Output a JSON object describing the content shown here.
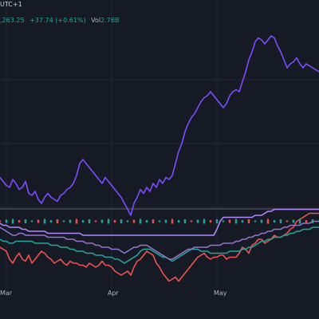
{
  "header": {
    "timezone": "UTC+1",
    "price": ",263.25",
    "change": "+37.74 (+0.61%)",
    "volume_label": "Vol",
    "volume_value": "2.76B"
  },
  "colors": {
    "background": "#161a25",
    "grid": "#232735",
    "up": "#26a69a",
    "down": "#ef5350",
    "volume_green": "#26a69a"
  },
  "chart_data": {
    "type": "line",
    "categories": [
      "Mar",
      "Apr",
      "May"
    ],
    "x": [
      0,
      4,
      8,
      12,
      16,
      20,
      24,
      28,
      32,
      36,
      40,
      44,
      48,
      52,
      56,
      60,
      64,
      68,
      72,
      76,
      80,
      84,
      88,
      92,
      96,
      100,
      104,
      108,
      112,
      116,
      120,
      124,
      128,
      132,
      136,
      140,
      144,
      148,
      152,
      156,
      160,
      164,
      168,
      172,
      176,
      180,
      184,
      188,
      192,
      196,
      200,
      204,
      208,
      212,
      216,
      220,
      224,
      228,
      232,
      236,
      240,
      244,
      248,
      252,
      256,
      260,
      264,
      268,
      272,
      276,
      280,
      284,
      288,
      292,
      296,
      300,
      304,
      308,
      312,
      316,
      320,
      324,
      328,
      332,
      336,
      340,
      344,
      348,
      352,
      356,
      360,
      364,
      368,
      372,
      376,
      380,
      384,
      388,
      392,
      396,
      400
    ],
    "series": [
      {
        "color": "#7c4dff",
        "values": [
          17,
          15,
          13,
          12,
          16,
          14,
          11,
          12,
          15,
          9,
          8,
          10,
          6,
          4,
          7,
          9,
          7,
          6,
          5,
          8,
          9,
          11,
          12,
          14,
          18,
          24,
          26,
          24,
          22,
          20,
          18,
          16,
          14,
          17,
          15,
          13,
          11,
          9,
          7,
          4,
          1,
          -2,
          4,
          7,
          11,
          9,
          12,
          10,
          14,
          12,
          16,
          14,
          17,
          16,
          18,
          24,
          30,
          34,
          40,
          44,
          47,
          49,
          52,
          55,
          57,
          58,
          60,
          58,
          56,
          54,
          52,
          54,
          58,
          60,
          61,
          60,
          65,
          70,
          76,
          80,
          85,
          87,
          86,
          84,
          86,
          88,
          87,
          83,
          80,
          76,
          72,
          74,
          75,
          77,
          74,
          72,
          74,
          73,
          72,
          71,
          70
        ]
      },
      {
        "color": "#b388ff",
        "values": [
          -6,
          -7,
          -7,
          -8,
          -8,
          -8,
          -8,
          -9,
          -9,
          -10,
          -10,
          -10,
          -10,
          -10,
          -10,
          -11,
          -11,
          -11,
          -11,
          -11,
          -11,
          -11,
          -11,
          -11,
          -11,
          -11,
          -12,
          -12,
          -12,
          -12,
          -12,
          -12,
          -12,
          -12,
          -12,
          -12,
          -12,
          -12,
          -12,
          -12,
          -12,
          -12,
          -12,
          -12,
          -12,
          -12,
          -12,
          -12,
          -12,
          -12,
          -12,
          -12,
          -12,
          -12,
          -12,
          -12,
          -12,
          -12,
          -12,
          -12,
          -12,
          -12,
          -12,
          -12,
          -12,
          -12,
          -12,
          -12,
          -9,
          -5,
          -3,
          -3,
          -3,
          -3,
          -3,
          -3,
          -3,
          -3,
          -3,
          -3,
          -2,
          -2,
          -2,
          -1,
          0,
          0,
          1,
          1,
          1,
          1,
          1,
          1,
          1,
          1,
          1,
          1,
          1,
          1,
          1,
          1,
          1
        ]
      },
      {
        "color": "#ef5350",
        "values": [
          -18,
          -19,
          -20,
          -24,
          -26,
          -23,
          -21,
          -24,
          -25,
          -22,
          -26,
          -24,
          -22,
          -20,
          -21,
          -23,
          -24,
          -26,
          -25,
          -24,
          -26,
          -27,
          -25,
          -26,
          -26,
          -27,
          -27,
          -28,
          -26,
          -27,
          -28,
          -27,
          -25,
          -27,
          -27,
          -28,
          -30,
          -31,
          -32,
          -31,
          -30,
          -32,
          -28,
          -25,
          -24,
          -22,
          -20,
          -21,
          -22,
          -26,
          -28,
          -31,
          -33,
          -35,
          -34,
          -33,
          -35,
          -33,
          -31,
          -29,
          -27,
          -25,
          -23,
          -22,
          -21,
          -23,
          -24,
          -23,
          -23,
          -22,
          -22,
          -24,
          -23,
          -23,
          -23,
          -21,
          -18,
          -19,
          -21,
          -17,
          -16,
          -14,
          -14,
          -16,
          -15,
          -14,
          -12,
          -13,
          -13,
          -12,
          -11,
          -9,
          -8,
          -5,
          -4,
          -3,
          -2,
          -1,
          -1,
          -1,
          -1
        ]
      },
      {
        "color": "#26a69a",
        "values": [
          -14,
          -15,
          -15,
          -16,
          -16,
          -15,
          -15,
          -15,
          -15,
          -15,
          -15,
          -16,
          -16,
          -16,
          -16,
          -16,
          -17,
          -17,
          -17,
          -18,
          -18,
          -18,
          -19,
          -19,
          -20,
          -20,
          -20,
          -21,
          -21,
          -21,
          -22,
          -22,
          -22,
          -23,
          -23,
          -23,
          -24,
          -24,
          -25,
          -26,
          -25,
          -24,
          -23,
          -22,
          -20,
          -19,
          -19,
          -19,
          -20,
          -21,
          -22,
          -23,
          -23,
          -24,
          -25,
          -24,
          -23,
          -22,
          -21,
          -20,
          -19,
          -19,
          -19,
          -20,
          -20,
          -20,
          -21,
          -21,
          -21,
          -21,
          -21,
          -21,
          -20,
          -20,
          -20,
          -20,
          -19,
          -19,
          -18,
          -18,
          -17,
          -16,
          -15,
          -15,
          -14,
          -14,
          -13,
          -13,
          -13,
          -12,
          -12,
          -11,
          -11,
          -10,
          -10,
          -9,
          -9,
          -9,
          -8,
          -8,
          -8
        ]
      },
      {
        "color": "#9575cd",
        "values": [
          -8,
          -9,
          -10,
          -11,
          -12,
          -12,
          -11,
          -11,
          -12,
          -12,
          -12,
          -12,
          -12,
          -12,
          -12,
          -13,
          -13,
          -13,
          -13,
          -13,
          -13,
          -14,
          -14,
          -14,
          -15,
          -15,
          -15,
          -16,
          -16,
          -16,
          -17,
          -17,
          -18,
          -18,
          -18,
          -19,
          -19,
          -19,
          -20,
          -21,
          -20,
          -19,
          -18,
          -18,
          -17,
          -17,
          -17,
          -18,
          -19,
          -20,
          -21,
          -22,
          -23,
          -24,
          -24,
          -23,
          -22,
          -21,
          -20,
          -19,
          -19,
          -18,
          -18,
          -18,
          -18,
          -18,
          -17,
          -17,
          -17,
          -17,
          -16,
          -16,
          -16,
          -16,
          -15,
          -15,
          -14,
          -14,
          -13,
          -13,
          -12,
          -12,
          -11,
          -11,
          -10,
          -10,
          -9,
          -9,
          -9,
          -8,
          -8,
          -7,
          -7,
          -7,
          -7,
          -6,
          -6,
          -6,
          -5,
          -5,
          -5
        ]
      }
    ],
    "xlabel": "",
    "ylabel": "",
    "ylim": [
      -36,
      90
    ],
    "grid": true,
    "legend": "none"
  }
}
